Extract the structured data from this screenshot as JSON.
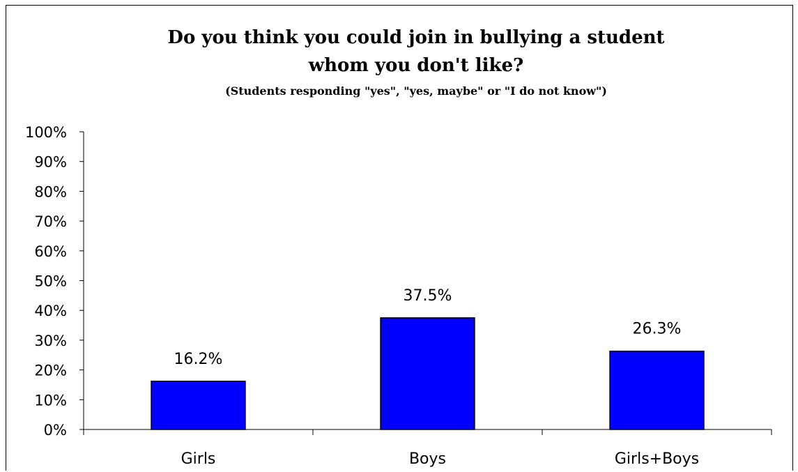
{
  "chart_data": {
    "type": "bar",
    "title_line1": "Do you think you could join in bullying a student",
    "title_line2": "whom you don't like?",
    "subtitle": "(Students responding \"yes\", \"yes, maybe\" or \"I do not know\")",
    "categories": [
      "Girls",
      "Boys",
      "Girls+Boys"
    ],
    "values": [
      16.2,
      37.5,
      26.3
    ],
    "value_labels": [
      "16.2%",
      "37.5%",
      "26.3%"
    ],
    "ylim": [
      0,
      100
    ],
    "yticks": [
      0,
      10,
      20,
      30,
      40,
      50,
      60,
      70,
      80,
      90,
      100
    ],
    "ytick_labels": [
      "0%",
      "10%",
      "20%",
      "30%",
      "40%",
      "50%",
      "60%",
      "70%",
      "80%",
      "90%",
      "100%"
    ],
    "xlabel": "",
    "ylabel": "",
    "grid": false,
    "legend": "none",
    "bar_color": "#0000FF",
    "bar_edge_color": "#000000"
  }
}
